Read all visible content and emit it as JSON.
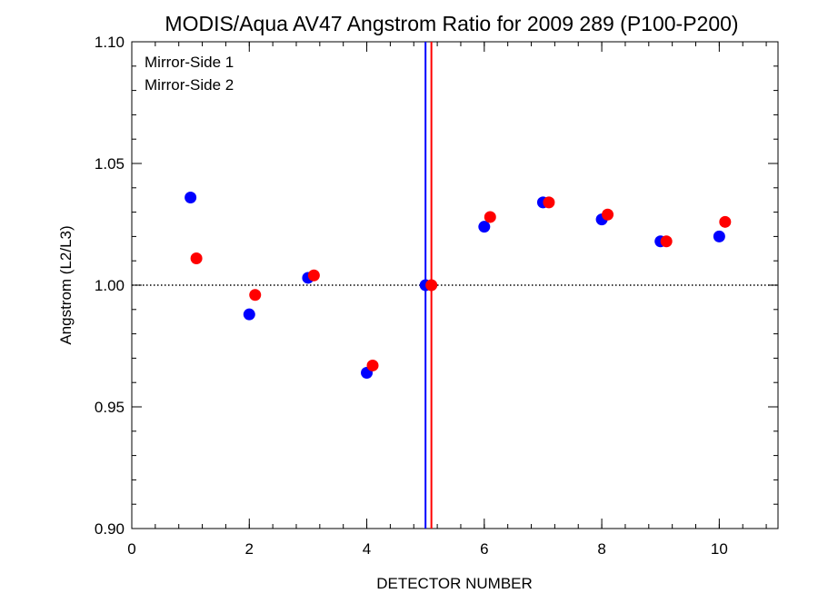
{
  "chart_data": {
    "type": "scatter",
    "title": "MODIS/Aqua AV47 Angstrom Ratio for 2009 289 (P100-P200)",
    "xlabel": "DETECTOR NUMBER",
    "ylabel": "Angstrom (L2/L3)",
    "xlim": [
      0,
      11
    ],
    "ylim": [
      0.9,
      1.1
    ],
    "x_ticks": [
      0,
      2,
      4,
      6,
      8,
      10
    ],
    "y_ticks": [
      0.9,
      0.95,
      1.0,
      1.05,
      1.1
    ],
    "x_tick_labels": [
      "0",
      "2",
      "4",
      "6",
      "8",
      "10"
    ],
    "y_tick_labels": [
      "0.90",
      "0.95",
      "1.00",
      "1.05",
      "1.10"
    ],
    "x_minor_step": 0.4,
    "y_minor_step": 0.01,
    "reference_line_y": 1.0,
    "legend_position": "top-left",
    "series": [
      {
        "name": "Mirror-Side 1",
        "color": "#0000ff",
        "x": [
          1,
          2,
          3,
          4,
          5,
          6,
          7,
          8,
          9,
          10
        ],
        "y": [
          1.036,
          0.988,
          1.003,
          0.964,
          1.0,
          1.024,
          1.034,
          1.027,
          1.018,
          1.02
        ],
        "vline_x": 5.0
      },
      {
        "name": "Mirror-Side 2",
        "color": "#ff0000",
        "x": [
          1.1,
          2.1,
          3.1,
          4.1,
          5.1,
          6.1,
          7.1,
          8.1,
          9.1,
          10.1
        ],
        "y": [
          1.011,
          0.996,
          1.004,
          0.967,
          1.0,
          1.028,
          1.034,
          1.029,
          1.018,
          1.026
        ],
        "vline_x": 5.1
      }
    ]
  }
}
